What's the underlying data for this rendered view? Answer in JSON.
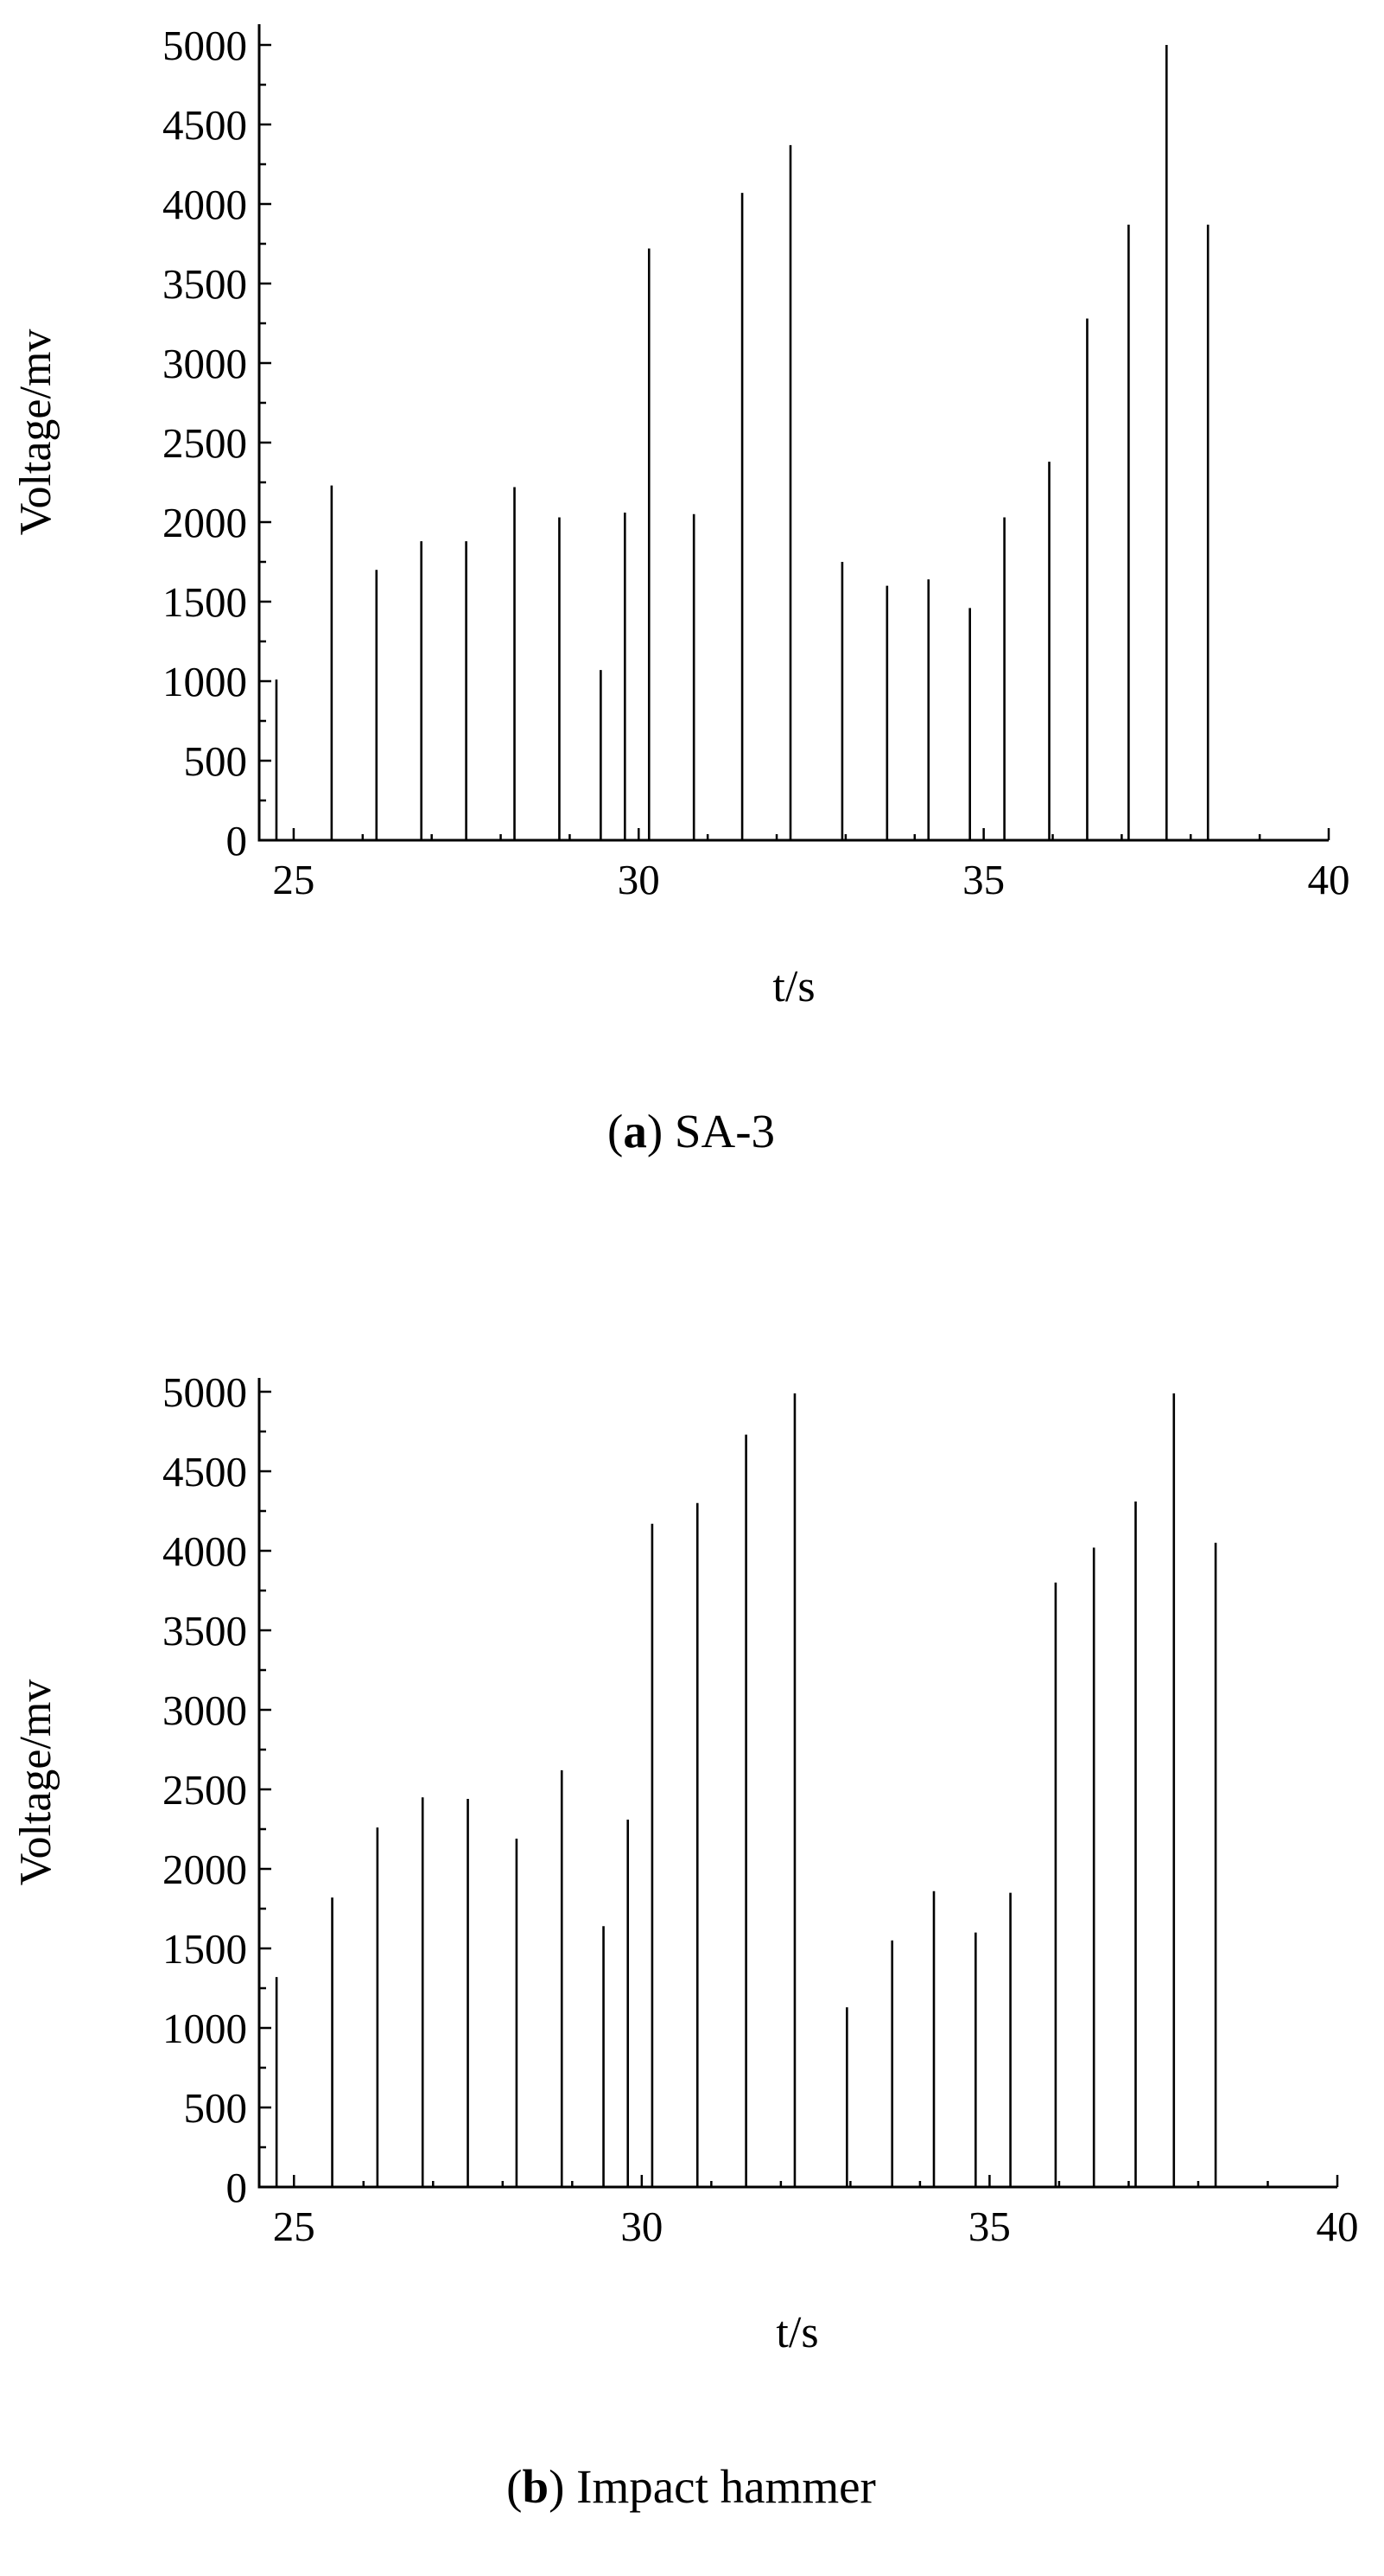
{
  "chart_data": [
    {
      "type": "bar",
      "caption_letter": "a",
      "caption_text": "SA-3",
      "xlabel": "t/s",
      "ylabel": "Voltage/mv",
      "xlim": [
        24.5,
        40
      ],
      "ylim": [
        0,
        5000
      ],
      "xticks": [
        25,
        30,
        35,
        40
      ],
      "yticks": [
        0,
        500,
        1000,
        1500,
        2000,
        2500,
        3000,
        3500,
        4000,
        4500,
        5000
      ],
      "x": [
        24.75,
        25.55,
        26.2,
        26.85,
        27.5,
        28.2,
        28.85,
        29.45,
        29.8,
        30.15,
        30.8,
        31.5,
        32.2,
        32.95,
        33.6,
        34.2,
        34.8,
        35.3,
        35.95,
        36.5,
        37.1,
        37.65,
        38.25
      ],
      "values": [
        1010,
        2230,
        1700,
        1880,
        1880,
        2220,
        2030,
        1070,
        2060,
        3720,
        2050,
        4070,
        4370,
        1750,
        1600,
        1640,
        1460,
        2030,
        2380,
        3280,
        3870,
        5000,
        3870
      ]
    },
    {
      "type": "bar",
      "caption_letter": "b",
      "caption_text": "Impact hammer",
      "xlabel": "t/s",
      "ylabel": "Voltage/mv",
      "xlim": [
        24.5,
        40
      ],
      "ylim": [
        0,
        5000
      ],
      "xticks": [
        25,
        30,
        35,
        40
      ],
      "yticks": [
        0,
        500,
        1000,
        1500,
        2000,
        2500,
        3000,
        3500,
        4000,
        4500,
        5000
      ],
      "x": [
        24.75,
        25.55,
        26.2,
        26.85,
        27.5,
        28.2,
        28.85,
        29.45,
        29.8,
        30.15,
        30.8,
        31.5,
        32.2,
        32.95,
        33.6,
        34.2,
        34.8,
        35.3,
        35.95,
        36.5,
        37.1,
        37.65,
        38.25
      ],
      "values": [
        1320,
        1820,
        2260,
        2450,
        2440,
        2190,
        2620,
        1640,
        2310,
        4170,
        4300,
        4730,
        4990,
        1130,
        1550,
        1860,
        1600,
        1850,
        3800,
        4020,
        4310,
        4990,
        4050
      ]
    }
  ]
}
